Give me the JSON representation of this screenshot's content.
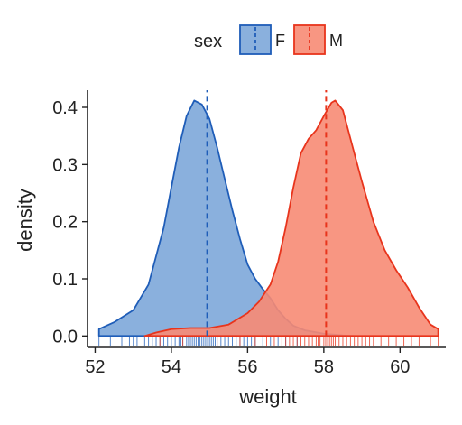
{
  "chart_data": {
    "type": "area",
    "chart_kind": "density",
    "title": "",
    "xlabel": "weight",
    "ylabel": "density",
    "xlim": [
      51.8,
      61.2
    ],
    "ylim": [
      -0.02,
      0.43
    ],
    "x_ticks": [
      52,
      54,
      56,
      58,
      60
    ],
    "y_ticks": [
      0.0,
      0.1,
      0.2,
      0.3,
      0.4
    ],
    "y_tick_labels": [
      "0.0",
      "0.1",
      "0.2",
      "0.3",
      "0.4"
    ],
    "grid": false,
    "legend": {
      "title": "sex",
      "position": "top",
      "entries": [
        "F",
        "M"
      ]
    },
    "series": [
      {
        "name": "F",
        "fill": "#7DA7D9",
        "line": "#1F5DB8",
        "fill_opacity": 0.9,
        "mean": 54.94,
        "points": [
          [
            52.1,
            0.012
          ],
          [
            52.5,
            0.024
          ],
          [
            53.0,
            0.045
          ],
          [
            53.4,
            0.09
          ],
          [
            53.8,
            0.19
          ],
          [
            54.0,
            0.26
          ],
          [
            54.2,
            0.33
          ],
          [
            54.4,
            0.385
          ],
          [
            54.6,
            0.412
          ],
          [
            54.8,
            0.405
          ],
          [
            55.0,
            0.38
          ],
          [
            55.2,
            0.33
          ],
          [
            55.4,
            0.275
          ],
          [
            55.6,
            0.22
          ],
          [
            55.8,
            0.17
          ],
          [
            56.0,
            0.125
          ],
          [
            56.2,
            0.1
          ],
          [
            56.4,
            0.082
          ],
          [
            56.6,
            0.066
          ],
          [
            56.8,
            0.045
          ],
          [
            57.0,
            0.03
          ],
          [
            57.2,
            0.018
          ],
          [
            57.5,
            0.01
          ],
          [
            58.0,
            0.004
          ],
          [
            58.5,
            0.001
          ],
          [
            58.8,
            0.0
          ]
        ]
      },
      {
        "name": "M",
        "fill": "#F78B74",
        "line": "#E8341C",
        "fill_opacity": 0.9,
        "mean": 58.06,
        "points": [
          [
            53.3,
            0.0
          ],
          [
            53.6,
            0.006
          ],
          [
            54.0,
            0.012
          ],
          [
            54.5,
            0.014
          ],
          [
            55.0,
            0.014
          ],
          [
            55.5,
            0.02
          ],
          [
            56.0,
            0.04
          ],
          [
            56.3,
            0.06
          ],
          [
            56.6,
            0.09
          ],
          [
            56.8,
            0.13
          ],
          [
            57.0,
            0.19
          ],
          [
            57.2,
            0.26
          ],
          [
            57.4,
            0.32
          ],
          [
            57.6,
            0.345
          ],
          [
            57.8,
            0.36
          ],
          [
            58.0,
            0.385
          ],
          [
            58.2,
            0.408
          ],
          [
            58.3,
            0.412
          ],
          [
            58.5,
            0.395
          ],
          [
            58.8,
            0.32
          ],
          [
            59.0,
            0.27
          ],
          [
            59.3,
            0.2
          ],
          [
            59.6,
            0.15
          ],
          [
            59.9,
            0.115
          ],
          [
            60.2,
            0.085
          ],
          [
            60.5,
            0.05
          ],
          [
            60.8,
            0.02
          ],
          [
            61.0,
            0.012
          ]
        ]
      }
    ],
    "rug": {
      "F": [
        52.1,
        52.4,
        52.7,
        52.9,
        53.0,
        53.1,
        53.3,
        53.4,
        53.5,
        53.6,
        53.7,
        53.8,
        53.9,
        54.0,
        54.1,
        54.2,
        54.25,
        54.3,
        54.4,
        54.45,
        54.5,
        54.55,
        54.6,
        54.65,
        54.7,
        54.75,
        54.8,
        54.85,
        54.9,
        54.95,
        55.0,
        55.05,
        55.1,
        55.15,
        55.2,
        55.3,
        55.4,
        55.5,
        55.6,
        55.7,
        55.8,
        55.9,
        56.0,
        56.1,
        56.2,
        56.4,
        56.6,
        56.8,
        57.0,
        57.3
      ],
      "M": [
        53.7,
        54.3,
        55.2,
        55.8,
        56.2,
        56.5,
        56.7,
        56.9,
        57.0,
        57.1,
        57.2,
        57.3,
        57.4,
        57.5,
        57.6,
        57.7,
        57.8,
        57.85,
        57.9,
        58.0,
        58.05,
        58.1,
        58.15,
        58.2,
        58.25,
        58.3,
        58.4,
        58.5,
        58.6,
        58.7,
        58.8,
        58.9,
        59.0,
        59.1,
        59.2,
        59.3,
        59.5,
        59.7,
        59.9,
        60.1,
        60.3,
        60.5,
        60.8,
        61.0
      ]
    }
  }
}
